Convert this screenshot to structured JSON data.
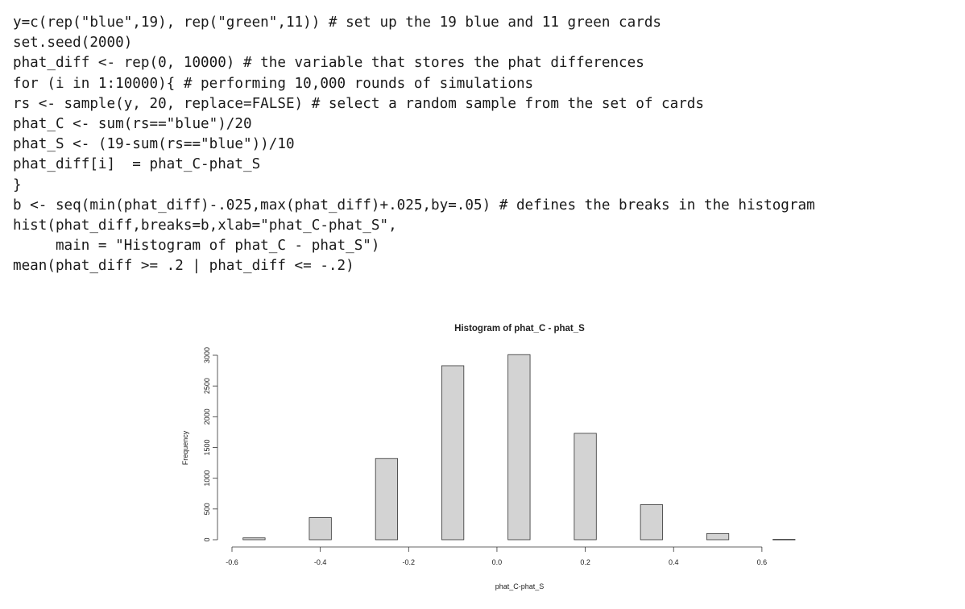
{
  "code_lines": [
    "y=c(rep(\"blue\",19), rep(\"green\",11)) # set up the 19 blue and 11 green cards",
    "set.seed(2000)",
    "phat_diff <- rep(0, 10000) # the variable that stores the phat differences",
    "for (i in 1:10000){ # performing 10,000 rounds of simulations",
    "rs <- sample(y, 20, replace=FALSE) # select a random sample from the set of cards",
    "phat_C <- sum(rs==\"blue\")/20",
    "phat_S <- (19-sum(rs==\"blue\"))/10",
    "phat_diff[i]  = phat_C-phat_S",
    "}",
    "b <- seq(min(phat_diff)-.025,max(phat_diff)+.025,by=.05) # defines the breaks in the histogram",
    "hist(phat_diff,breaks=b,xlab=\"phat_C-phat_S\",",
    "     main = \"Histogram of phat_C - phat_S\")",
    "mean(phat_diff >= .2 | phat_diff <= -.2)"
  ],
  "chart_data": {
    "type": "bar",
    "title": "Histogram of phat_C - phat_S",
    "xlabel": "phat_C-phat_S",
    "ylabel": "Frequency",
    "bin_width": 0.05,
    "bins": [
      {
        "center": -0.55,
        "value": 30
      },
      {
        "center": -0.4,
        "value": 360
      },
      {
        "center": -0.25,
        "value": 1320
      },
      {
        "center": -0.1,
        "value": 2830
      },
      {
        "center": 0.05,
        "value": 3010
      },
      {
        "center": 0.2,
        "value": 1730
      },
      {
        "center": 0.35,
        "value": 570
      },
      {
        "center": 0.5,
        "value": 100
      },
      {
        "center": 0.65,
        "value": 6
      }
    ],
    "x_ticks": [
      -0.6,
      -0.4,
      -0.2,
      0.0,
      0.2,
      0.4,
      0.6
    ],
    "x_tick_labels": [
      "-0.6",
      "-0.4",
      "-0.2",
      "0.0",
      "0.2",
      "0.4",
      "0.6"
    ],
    "y_ticks": [
      0,
      500,
      1000,
      1500,
      2000,
      2500,
      3000
    ],
    "y_tick_labels": [
      "0",
      "500",
      "1000",
      "1500",
      "2000",
      "2500",
      "3000"
    ],
    "xlim": [
      -0.6,
      0.675
    ],
    "ylim": [
      0,
      3000
    ],
    "bar_color": "#d3d3d3",
    "edge_color": "#333333"
  }
}
